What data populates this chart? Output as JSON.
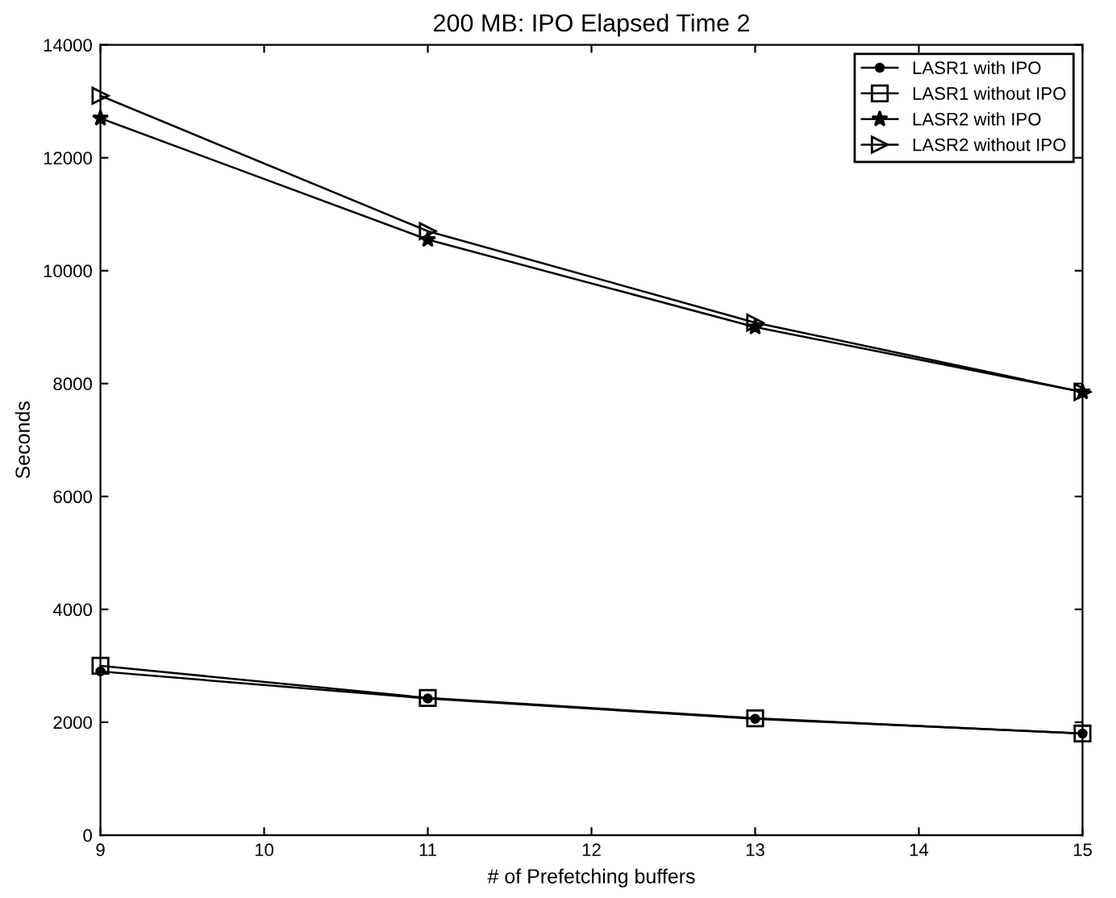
{
  "chart_data": {
    "type": "line",
    "title": "200 MB: IPO Elapsed Time 2",
    "xlabel": "# of Prefetching buffers",
    "ylabel": "Seconds",
    "x": [
      9,
      11,
      13,
      15
    ],
    "series": [
      {
        "name": "LASR1 with IPO",
        "color": "#000000",
        "marker": "circle",
        "values": [
          2900,
          2420,
          2060,
          1800
        ]
      },
      {
        "name": "LASR1 without IPO",
        "color": "#000000",
        "marker": "square",
        "values": [
          3000,
          2430,
          2070,
          1800
        ]
      },
      {
        "name": "LASR2 with IPO",
        "color": "#000000",
        "marker": "star",
        "values": [
          12700,
          10550,
          9000,
          7850
        ]
      },
      {
        "name": "LASR2 without IPO",
        "color": "#000000",
        "marker": "triangle",
        "values": [
          13100,
          10700,
          9080,
          7850
        ]
      }
    ],
    "xlim": [
      9,
      15
    ],
    "xticks": [
      9,
      10,
      11,
      12,
      13,
      14,
      15
    ],
    "ylim": [
      0,
      14000
    ],
    "yticks": [
      0,
      2000,
      4000,
      6000,
      8000,
      10000,
      12000,
      14000
    ],
    "grid": false,
    "legend": "top right",
    "line_style": "solid"
  }
}
